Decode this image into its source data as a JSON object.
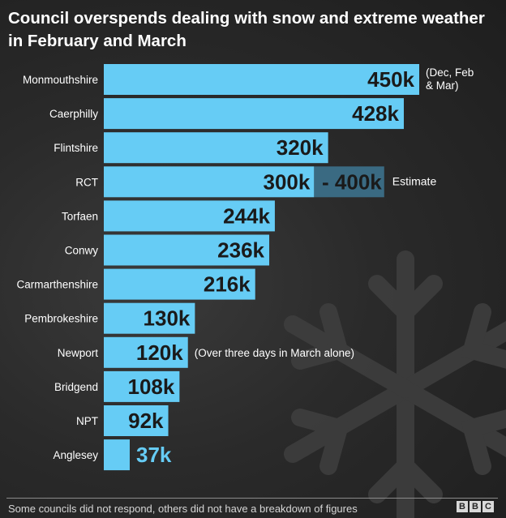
{
  "title": "Council overspends dealing with snow and extreme weather in February and March",
  "footer": {
    "note": "Some councils did not respond, others did not have a breakdown of figures",
    "brand_letters": [
      "B",
      "B",
      "C"
    ]
  },
  "colors": {
    "bar": "#66ccf5",
    "estimate": "#3a6a82",
    "value_text": "#1a1a1a",
    "outside_value_text": "#66ccf5",
    "label_text": "#ffffff",
    "background": "#262626"
  },
  "chart_data": {
    "type": "bar",
    "orientation": "horizontal",
    "categories": [
      "Monmouthshire",
      "Caerphilly",
      "Flintshire",
      "RCT",
      "Torfaen",
      "Conwy",
      "Carmarthenshire",
      "Pembrokeshire",
      "Newport",
      "Bridgend",
      "NPT",
      "Anglesey"
    ],
    "values": [
      450,
      428,
      320,
      300,
      244,
      236,
      216,
      130,
      120,
      108,
      92,
      37
    ],
    "value_labels": [
      "450k",
      "428k",
      "320k",
      "300k",
      "244k",
      "236k",
      "216k",
      "130k",
      "120k",
      "108k",
      "92k",
      "37k"
    ],
    "estimate_range": {
      "category": "RCT",
      "low": 300,
      "high": 400,
      "low_label": "300k",
      "high_label": "- 400k",
      "note": "Estimate"
    },
    "annotations": [
      {
        "category": "Monmouthshire",
        "lines": [
          "(Dec, Feb",
          "& Mar)"
        ]
      },
      {
        "category": "Newport",
        "lines": [
          "(Over three days in March alone)"
        ]
      }
    ],
    "unit": "k",
    "title": "Council overspends dealing with snow and extreme weather in February and March",
    "xlabel": "",
    "ylabel": "",
    "xlim": [
      0,
      450
    ],
    "grid": false,
    "legend": "none"
  }
}
